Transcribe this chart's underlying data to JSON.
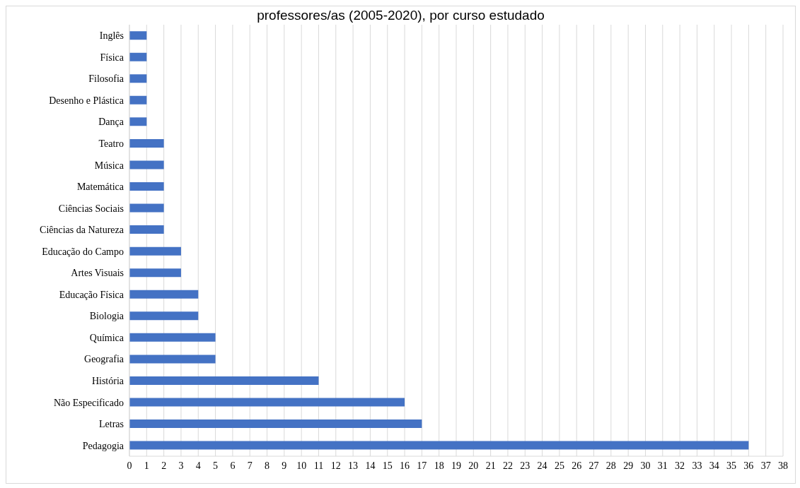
{
  "chart_data": {
    "type": "bar",
    "orientation": "horizontal",
    "title": "professores/as (2005-2020), por curso estudado",
    "categories": [
      "Inglês",
      "Física",
      "Filosofia",
      "Desenho e Plástica",
      "Dança",
      "Teatro",
      "Música",
      "Matemática",
      "Ciências Sociais",
      "Ciências da Natureza",
      "Educação do Campo",
      "Artes Visuais",
      "Educação Física",
      "Biologia",
      "Química",
      "Geografia",
      "História",
      "Não Especificado",
      "Letras",
      "Pedagogia"
    ],
    "values": [
      1,
      1,
      1,
      1,
      1,
      2,
      2,
      2,
      2,
      2,
      3,
      3,
      4,
      4,
      5,
      5,
      11,
      16,
      17,
      36
    ],
    "color": "#4472c4",
    "xlim": [
      0,
      38
    ],
    "xticks": [
      0,
      1,
      2,
      3,
      4,
      5,
      6,
      7,
      8,
      9,
      10,
      11,
      12,
      13,
      14,
      15,
      16,
      17,
      18,
      19,
      20,
      21,
      22,
      23,
      24,
      25,
      26,
      27,
      28,
      29,
      30,
      31,
      32,
      33,
      34,
      35,
      36,
      37,
      38
    ],
    "grid": "x"
  }
}
